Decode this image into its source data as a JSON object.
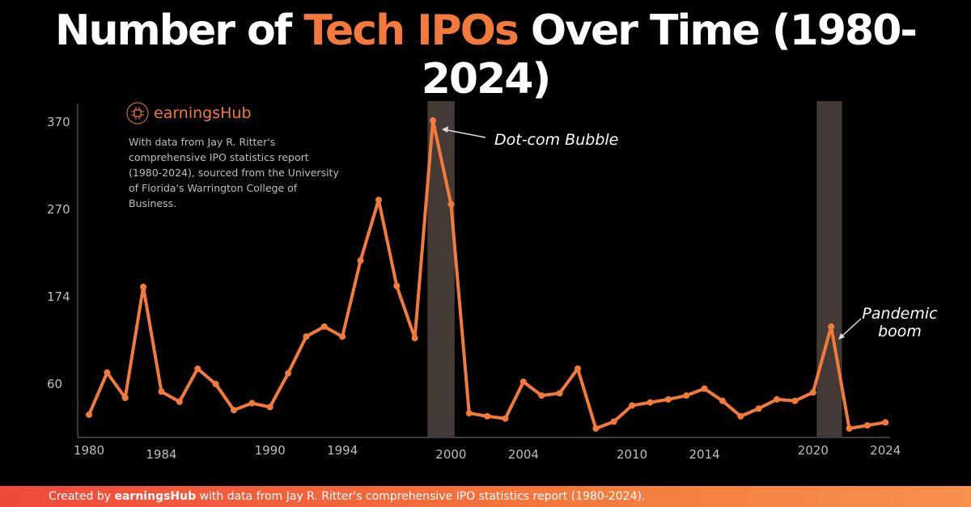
{
  "title": {
    "part1": "Number of ",
    "highlight": "Tech IPOs",
    "part2": " Over Time (1980-2024)"
  },
  "brand": {
    "name": "earningsHub",
    "icon": "chip-icon"
  },
  "note": "With data from Jay R. Ritter's comprehensive IPO statistics report (1980-2024), sourced from the University of Florida's Warrington College of Business.",
  "footer": {
    "prefix": "Created by ",
    "brand": "earningsHub",
    "suffix": " with data from Jay R. Ritter's comprehensive IPO statistics report (1980-2024)."
  },
  "colors": {
    "line": "#f47a3c",
    "band": "#433a36",
    "axis": "#777777",
    "tick_text": "#bdbdbd"
  },
  "chart_data": {
    "type": "line",
    "title": "Number of Tech IPOs Over Time (1980-2024)",
    "x": [
      1980,
      1981,
      1982,
      1983,
      1984,
      1985,
      1986,
      1987,
      1988,
      1989,
      1990,
      1991,
      1992,
      1993,
      1994,
      1995,
      1996,
      1997,
      1998,
      1999,
      2000,
      2001,
      2002,
      2003,
      2004,
      2005,
      2006,
      2007,
      2008,
      2009,
      2010,
      2011,
      2012,
      2013,
      2014,
      2015,
      2016,
      2017,
      2018,
      2019,
      2020,
      2021,
      2022,
      2023,
      2024
    ],
    "values": [
      19,
      74,
      41,
      184,
      49,
      36,
      79,
      59,
      25,
      34,
      29,
      73,
      121,
      134,
      121,
      213,
      280,
      185,
      119,
      371,
      275,
      21,
      17,
      14,
      62,
      44,
      47,
      79,
      1,
      10,
      31,
      35,
      39,
      44,
      53,
      37,
      17,
      27,
      39,
      37,
      48,
      134,
      1,
      5,
      9
    ],
    "x_ticks": [
      1980,
      1984,
      1990,
      1994,
      2000,
      2004,
      2010,
      2014,
      2020,
      2024
    ],
    "y_ticks": [
      60,
      174,
      270,
      370
    ],
    "xlim": [
      1980,
      2024
    ],
    "grid": false,
    "shaded_ranges": [
      [
        1998.7,
        2000.2
      ],
      [
        2020.2,
        2021.6
      ]
    ],
    "annotations": [
      {
        "text": "Dot-com Bubble",
        "x": 1999
      },
      {
        "text": "Pandemic boom",
        "lines": [
          "Pandemic",
          "boom"
        ],
        "x": 2021
      }
    ]
  }
}
